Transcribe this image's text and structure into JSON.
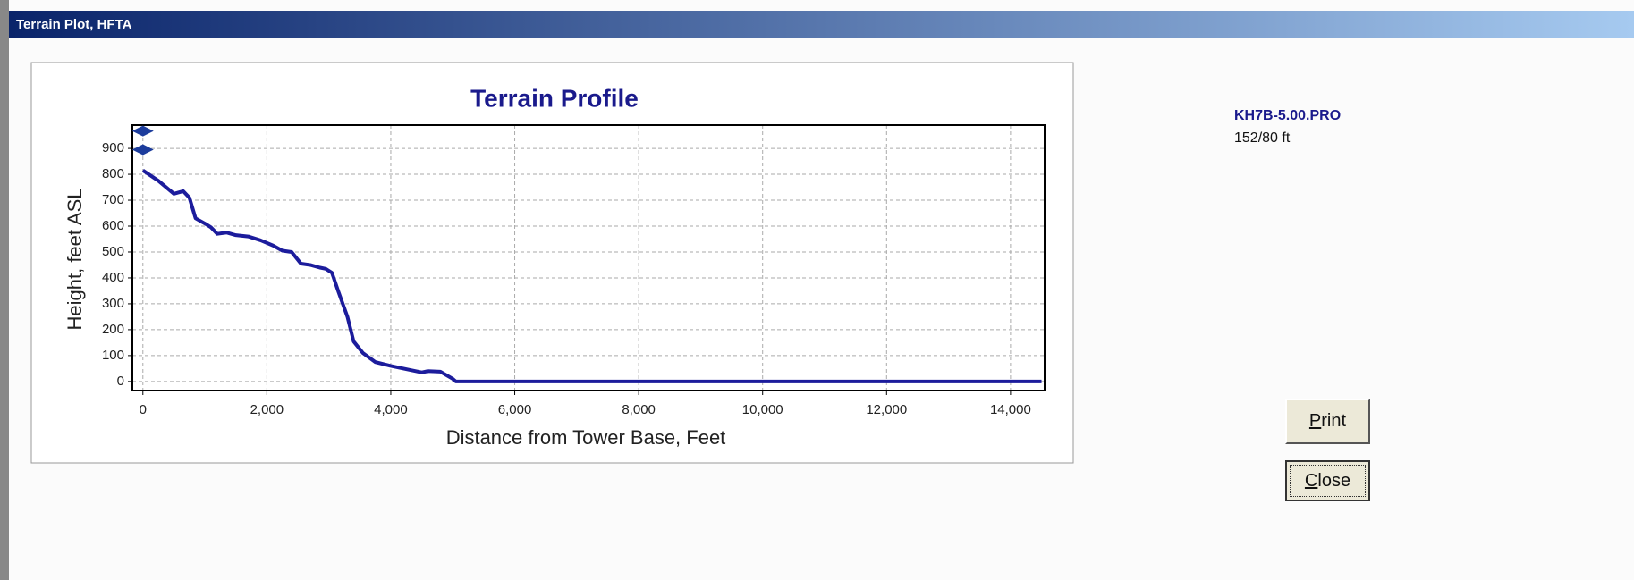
{
  "window": {
    "title": "Terrain Plot, HFTA"
  },
  "chart_data": {
    "type": "line",
    "title": "Terrain Profile",
    "x_label": "Distance from Tower Base, Feet",
    "y_label": "Height, feet ASL",
    "series": [
      {
        "name": "Terrain",
        "color": "#1c1c9c",
        "x": [
          0,
          250,
          500,
          650,
          750,
          850,
          1000,
          1100,
          1200,
          1350,
          1500,
          1700,
          1900,
          2100,
          2250,
          2400,
          2550,
          2700,
          2850,
          2950,
          3050,
          3150,
          3300,
          3400,
          3550,
          3750,
          4000,
          4300,
          4500,
          4600,
          4800,
          5000,
          5050,
          14500
        ],
        "values": [
          815,
          775,
          725,
          735,
          710,
          630,
          610,
          595,
          570,
          575,
          565,
          560,
          545,
          525,
          505,
          500,
          455,
          450,
          440,
          435,
          420,
          350,
          250,
          155,
          110,
          75,
          60,
          45,
          35,
          40,
          38,
          10,
          0,
          0
        ]
      }
    ],
    "markers": {
      "color": "#1c3c9c",
      "x": [
        0,
        0
      ],
      "values": [
        967,
        895
      ]
    },
    "xlim": [
      -170,
      14550
    ],
    "ylim": [
      -35,
      990
    ],
    "xticks": [
      0,
      {
        "value": 2000,
        "label": "2,000"
      },
      {
        "value": 4000,
        "label": "4,000"
      },
      {
        "value": 6000,
        "label": "6,000"
      },
      {
        "value": 8000,
        "label": "8,000"
      },
      {
        "value": 10000,
        "label": "10,000"
      },
      {
        "value": 12000,
        "label": "12,000"
      },
      {
        "value": 14000,
        "label": "14,000"
      }
    ],
    "yticks": [
      0,
      100,
      200,
      300,
      400,
      500,
      600,
      700,
      800,
      900
    ],
    "grid": true
  },
  "info": {
    "file": "KH7B-5.00.PRO",
    "heights": "152/80 ft"
  },
  "buttons": [
    "Print",
    "Close"
  ]
}
